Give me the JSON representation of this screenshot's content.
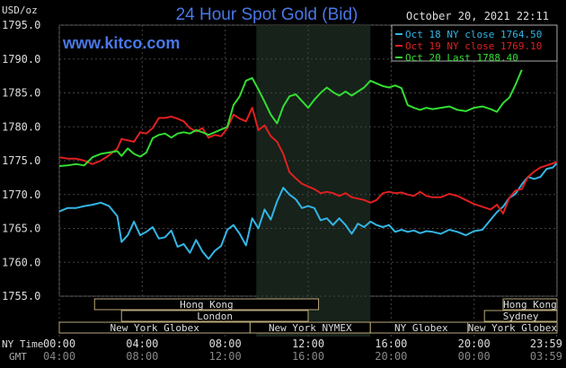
{
  "chart_data": {
    "type": "line",
    "title": "24 Hour Spot Gold (Bid)",
    "source_label": "www.kitco.com",
    "timestamp": "October 20, 2021 22:11",
    "ylabel": "USD/oz",
    "ylim": [
      1755,
      1795
    ],
    "y_ticks": [
      "1795.0",
      "1790.0",
      "1785.0",
      "1780.0",
      "1775.0",
      "1770.0",
      "1765.0",
      "1760.0",
      "1755.0"
    ],
    "y_tick_values": [
      1795,
      1790,
      1785,
      1780,
      1775,
      1770,
      1765,
      1760,
      1755
    ],
    "xlim": [
      0,
      24
    ],
    "x_ticks_ny": [
      "00:00",
      "04:00",
      "08:00",
      "12:00",
      "16:00",
      "20:00",
      "23:59"
    ],
    "x_ticks_gmt": [
      "04:00",
      "08:00",
      "12:00",
      "16:00",
      "20:00",
      "00:00",
      "03:59"
    ],
    "x_tick_hours": [
      0,
      4,
      8,
      12,
      16,
      20,
      23.98
    ],
    "ny_time_label": "NY Time",
    "gmt_label": "GMT",
    "shaded_region": [
      9.5,
      15.0
    ],
    "sessions": [
      {
        "name": "Hong Kong",
        "start": 1.7,
        "end": 12.5,
        "row": 0
      },
      {
        "name": "London",
        "start": 3.0,
        "end": 12.0,
        "row": 1
      },
      {
        "name": "New York Globex",
        "start": 0.0,
        "end": 9.2,
        "row": 2
      },
      {
        "name": "New York NYMEX",
        "start": 9.2,
        "end": 15.0,
        "row": 2
      },
      {
        "name": "NY Globex",
        "start": 15.0,
        "end": 19.9,
        "row": 2
      },
      {
        "name": "New York Globex",
        "start": 19.7,
        "end": 24.0,
        "row": 2
      },
      {
        "name": "Hong Kong",
        "start": 21.4,
        "end": 24.0,
        "row": 0
      },
      {
        "name": "Sydney",
        "start": 20.5,
        "end": 24.0,
        "row": 1
      }
    ],
    "series": [
      {
        "name": "Oct 18 NY close 1764.50",
        "color": "#33b5e5",
        "x": [
          0,
          0.4,
          0.8,
          1.2,
          1.6,
          2.0,
          2.4,
          2.8,
          3.0,
          3.3,
          3.6,
          3.9,
          4.2,
          4.5,
          4.8,
          5.1,
          5.4,
          5.7,
          6.0,
          6.3,
          6.6,
          6.9,
          7.2,
          7.5,
          7.8,
          8.1,
          8.4,
          8.7,
          9.0,
          9.3,
          9.6,
          9.9,
          10.2,
          10.5,
          10.8,
          11.1,
          11.4,
          11.7,
          12.0,
          12.3,
          12.6,
          12.9,
          13.2,
          13.5,
          13.8,
          14.1,
          14.4,
          14.7,
          15.0,
          15.3,
          15.6,
          15.9,
          16.2,
          16.5,
          16.8,
          17.1,
          17.4,
          17.7,
          18.0,
          18.4,
          18.8,
          19.2,
          19.6,
          20.0,
          20.4,
          20.8,
          21.1,
          21.4,
          21.7,
          22.0,
          22.3,
          22.6,
          22.9,
          23.2,
          23.5,
          23.8,
          23.98
        ],
        "y": [
          1767.5,
          1768,
          1768,
          1768.3,
          1768.5,
          1768.8,
          1768.3,
          1766.8,
          1763,
          1764,
          1766,
          1764,
          1764.5,
          1765.2,
          1763.5,
          1763.7,
          1764.7,
          1762.3,
          1762.7,
          1761.4,
          1763.3,
          1761.6,
          1760.5,
          1761.7,
          1762.4,
          1764.8,
          1765.5,
          1764.2,
          1762.5,
          1766.5,
          1765,
          1767.8,
          1766.3,
          1769,
          1771,
          1770,
          1769.3,
          1768,
          1768.3,
          1768,
          1766.2,
          1766.5,
          1765.5,
          1766.5,
          1765.5,
          1764.2,
          1765.7,
          1765.2,
          1766,
          1765.5,
          1765.2,
          1765.5,
          1764.5,
          1764.8,
          1764.5,
          1764.7,
          1764.3,
          1764.6,
          1764.5,
          1764.2,
          1764.8,
          1764.5,
          1764,
          1764.6,
          1764.8,
          1766.3,
          1767.4,
          1768.2,
          1769.5,
          1770.1,
          1771.5,
          1772.6,
          1772.3,
          1772.6,
          1773.8,
          1774,
          1774.6
        ]
      },
      {
        "name": "Oct 19 NY close 1769.10",
        "color": "#e02020",
        "x": [
          0,
          0.4,
          0.8,
          1.2,
          1.6,
          2.0,
          2.4,
          2.8,
          3.0,
          3.3,
          3.6,
          3.9,
          4.2,
          4.5,
          4.8,
          5.1,
          5.4,
          5.7,
          6.0,
          6.3,
          6.6,
          6.9,
          7.2,
          7.5,
          7.8,
          8.1,
          8.4,
          8.7,
          9.0,
          9.3,
          9.6,
          9.9,
          10.2,
          10.5,
          10.8,
          11.1,
          11.4,
          11.7,
          12.0,
          12.3,
          12.6,
          12.9,
          13.2,
          13.5,
          13.8,
          14.1,
          14.4,
          14.7,
          15.0,
          15.3,
          15.6,
          15.9,
          16.2,
          16.5,
          16.8,
          17.1,
          17.4,
          17.7,
          18.0,
          18.4,
          18.8,
          19.2,
          19.6,
          20.0,
          20.4,
          20.8,
          21.1,
          21.4,
          21.7,
          22.0,
          22.3,
          22.6,
          22.9,
          23.2,
          23.5,
          23.8,
          23.98
        ],
        "y": [
          1775.5,
          1775.3,
          1775.3,
          1775,
          1774.5,
          1775,
          1775.8,
          1776.8,
          1778.2,
          1778,
          1777.8,
          1779.2,
          1779,
          1779.8,
          1781.3,
          1781.3,
          1781.5,
          1781.2,
          1780.8,
          1779.8,
          1779.3,
          1779.8,
          1778.4,
          1778.8,
          1778.6,
          1779.8,
          1781.8,
          1781.2,
          1780.8,
          1782.8,
          1779.5,
          1780.2,
          1778.6,
          1777.8,
          1776,
          1773.3,
          1772.4,
          1771.6,
          1771.2,
          1770.8,
          1770.2,
          1770.4,
          1770.2,
          1769.8,
          1770.2,
          1769.6,
          1769.4,
          1769.2,
          1768.8,
          1769.2,
          1770.2,
          1770.4,
          1770.2,
          1770.3,
          1770,
          1769.8,
          1770.4,
          1769.8,
          1769.6,
          1769.6,
          1770.1,
          1769.8,
          1769.2,
          1768.6,
          1768.2,
          1767.8,
          1768.5,
          1767.2,
          1769.5,
          1770.6,
          1770.8,
          1772.6,
          1773.4,
          1774,
          1774.3,
          1774.6,
          1774.8
        ]
      },
      {
        "name": "Oct 20 Last 1788.40",
        "color": "#33dd33",
        "x": [
          0,
          0.4,
          0.8,
          1.2,
          1.6,
          2.0,
          2.4,
          2.8,
          3.0,
          3.3,
          3.6,
          3.9,
          4.2,
          4.5,
          4.8,
          5.1,
          5.4,
          5.7,
          6.0,
          6.3,
          6.6,
          6.9,
          7.2,
          7.5,
          7.8,
          8.1,
          8.4,
          8.7,
          9.0,
          9.3,
          9.6,
          9.9,
          10.2,
          10.5,
          10.8,
          11.1,
          11.4,
          11.7,
          12.0,
          12.3,
          12.6,
          12.9,
          13.2,
          13.5,
          13.8,
          14.1,
          14.4,
          14.7,
          15.0,
          15.3,
          15.6,
          15.9,
          16.2,
          16.5,
          16.8,
          17.1,
          17.4,
          17.7,
          18.0,
          18.4,
          18.8,
          19.2,
          19.6,
          20.0,
          20.4,
          20.8,
          21.1,
          21.4,
          21.7,
          22.0,
          22.3
        ],
        "y": [
          1774.2,
          1774.3,
          1774.5,
          1774.3,
          1775.5,
          1776,
          1776.2,
          1776.4,
          1775.7,
          1776.8,
          1776,
          1775.6,
          1776.2,
          1778.3,
          1778.8,
          1779,
          1778.4,
          1779,
          1779.2,
          1779,
          1779.5,
          1779.2,
          1778.8,
          1779.2,
          1779.6,
          1780,
          1783.2,
          1784.5,
          1786.8,
          1787.2,
          1785.5,
          1783.7,
          1781.8,
          1780.5,
          1783,
          1784.5,
          1784.8,
          1783.8,
          1782.8,
          1784,
          1785,
          1785.8,
          1785.1,
          1784.6,
          1785.2,
          1784.6,
          1785.2,
          1785.8,
          1786.8,
          1786.4,
          1786,
          1785.8,
          1786.1,
          1785.7,
          1783.2,
          1782.8,
          1782.5,
          1782.8,
          1782.6,
          1782.8,
          1783,
          1782.5,
          1782.3,
          1782.8,
          1783,
          1782.6,
          1782.2,
          1783.5,
          1784.3,
          1786.2,
          1788.4
        ]
      }
    ]
  }
}
